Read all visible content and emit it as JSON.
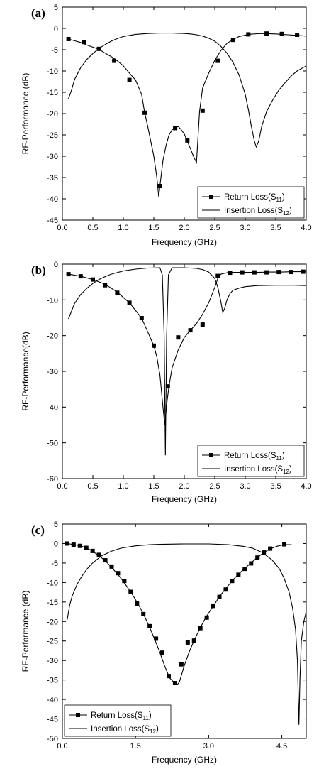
{
  "chart_data": [
    {
      "type": "line",
      "panel_label": "(a)",
      "xlabel": "Frequency (GHz)",
      "ylabel": "RF-Performance (dB)",
      "xlim": [
        0.0,
        4.0
      ],
      "ylim": [
        -45,
        5
      ],
      "xticks": [
        0.0,
        0.5,
        1.0,
        1.5,
        2.0,
        2.5,
        3.0,
        3.5,
        4.0
      ],
      "xtick_labels": [
        "0.0",
        "0.5",
        "1.0",
        "1.5",
        "2.0",
        "2.5",
        "3.0",
        "3.5",
        "4.0"
      ],
      "yticks": [
        5,
        0,
        -5,
        -10,
        -15,
        -20,
        -25,
        -30,
        -35,
        -40,
        -45
      ],
      "ytick_labels": [
        "5",
        "0",
        "-5",
        "-10",
        "-15",
        "-20",
        "-25",
        "-30",
        "-35",
        "-40",
        "-45"
      ],
      "legend_position": "bottom-right",
      "series": [
        {
          "name": "Return Loss(S11)",
          "label_main": "Return Loss(S",
          "label_sub": "11",
          "style": "line-square-markers",
          "x": [
            0.1,
            0.2,
            0.3,
            0.4,
            0.5,
            0.6,
            0.7,
            0.8,
            0.9,
            1.0,
            1.1,
            1.2,
            1.3,
            1.35,
            1.4,
            1.5,
            1.55,
            1.58,
            1.6,
            1.65,
            1.7,
            1.75,
            1.8,
            1.85,
            1.9,
            1.95,
            2.0,
            2.05,
            2.1,
            2.15,
            2.2,
            2.25,
            2.3,
            2.4,
            2.5,
            2.6,
            2.7,
            2.8,
            2.9,
            3.0,
            3.1,
            3.2,
            3.3,
            3.4,
            3.5,
            3.6,
            3.7,
            3.8,
            3.9,
            4.0
          ],
          "values": [
            -2.5,
            -2.9,
            -3.3,
            -3.9,
            -4.4,
            -4.9,
            -5.8,
            -6.6,
            -7.6,
            -8.8,
            -10.5,
            -12.1,
            -15.5,
            -19.8,
            -23.0,
            -30.0,
            -35.0,
            -39.5,
            -37.0,
            -31.0,
            -27.5,
            -25.0,
            -23.8,
            -23.4,
            -23.0,
            -23.8,
            -24.8,
            -26.5,
            -28.2,
            -30.0,
            -31.5,
            -19.5,
            -14.0,
            -10.5,
            -7.5,
            -5.2,
            -3.5,
            -2.6,
            -1.9,
            -1.6,
            -1.35,
            -1.25,
            -1.2,
            -1.25,
            -1.3,
            -1.4,
            -1.5,
            -1.6,
            -1.7,
            -1.8
          ],
          "marker_x": [
            0.1,
            0.35,
            0.6,
            0.85,
            1.1,
            1.35,
            1.6,
            1.85,
            2.05,
            2.3,
            2.55,
            2.8,
            3.05,
            3.35,
            3.6,
            3.85
          ],
          "marker_values": [
            -2.5,
            -3.2,
            -4.8,
            -7.6,
            -12.1,
            -19.8,
            -37.0,
            -23.4,
            -26.3,
            -19.3,
            -7.6,
            -2.7,
            -1.4,
            -1.2,
            -1.3,
            -1.5
          ]
        },
        {
          "name": "Insertion Loss(S12)",
          "label_main": "Insertion Loss(S",
          "label_sub": "12",
          "style": "line",
          "x": [
            0.1,
            0.15,
            0.2,
            0.3,
            0.4,
            0.5,
            0.6,
            0.7,
            0.8,
            0.9,
            1.0,
            1.2,
            1.4,
            1.6,
            1.8,
            2.0,
            2.1,
            2.2,
            2.3,
            2.4,
            2.5,
            2.6,
            2.7,
            2.8,
            2.9,
            3.0,
            3.05,
            3.1,
            3.15,
            3.18,
            3.22,
            3.27,
            3.35,
            3.45,
            3.55,
            3.65,
            3.75,
            3.85,
            4.0
          ],
          "values": [
            -16.5,
            -14.5,
            -12.0,
            -9.2,
            -7.3,
            -5.9,
            -4.7,
            -3.8,
            -3.0,
            -2.4,
            -1.9,
            -1.4,
            -1.2,
            -1.1,
            -1.1,
            -1.2,
            -1.3,
            -1.5,
            -1.8,
            -2.3,
            -3.0,
            -4.2,
            -5.8,
            -8.0,
            -11.0,
            -15.5,
            -19.0,
            -23.0,
            -26.5,
            -27.8,
            -26.5,
            -23.0,
            -19.5,
            -16.8,
            -14.5,
            -12.8,
            -11.2,
            -10.0,
            -8.8
          ]
        }
      ]
    },
    {
      "type": "line",
      "panel_label": "(b)",
      "xlabel": "Frequency (GHz)",
      "ylabel": "RF-Performance(dB)",
      "xlim": [
        0.0,
        4.0
      ],
      "ylim": [
        -60,
        0
      ],
      "xticks": [
        0.0,
        0.5,
        1.0,
        1.5,
        2.0,
        2.5,
        3.0,
        3.5,
        4.0
      ],
      "xtick_labels": [
        "0.0",
        "0.5",
        "1.0",
        "1.5",
        "2.0",
        "2.5",
        "3.0",
        "3.5",
        "4.0"
      ],
      "yticks": [
        0,
        -10,
        -20,
        -30,
        -40,
        -50,
        -60
      ],
      "ytick_labels": [
        "0",
        "-10",
        "-20",
        "-30",
        "-40",
        "-50",
        "-60"
      ],
      "legend_position": "bottom-right",
      "series": [
        {
          "name": "Return Loss(S11)",
          "label_main": "Return Loss(S",
          "label_sub": "11",
          "style": "line-square-markers",
          "x": [
            0.1,
            0.3,
            0.5,
            0.7,
            0.9,
            1.1,
            1.3,
            1.5,
            1.55,
            1.6,
            1.65,
            1.68,
            1.72,
            1.75,
            1.8,
            1.9,
            2.0,
            2.1,
            2.2,
            2.3,
            2.4,
            2.5,
            2.55,
            2.6,
            2.7,
            2.8,
            3.0,
            3.2,
            3.4,
            3.6,
            3.8,
            4.0
          ],
          "values": [
            -2.8,
            -3.4,
            -4.3,
            -5.6,
            -7.8,
            -10.8,
            -15.1,
            -22.8,
            -26.0,
            -31.0,
            -40.0,
            -45.0,
            -38.0,
            -34.0,
            -29.0,
            -24.0,
            -20.5,
            -18.5,
            -16.6,
            -14.0,
            -10.8,
            -6.5,
            -4.0,
            -2.8,
            -2.4,
            -2.3,
            -2.3,
            -2.3,
            -2.2,
            -2.2,
            -2.1,
            -2.1
          ],
          "marker_x": [
            0.1,
            0.3,
            0.5,
            0.7,
            0.9,
            1.1,
            1.3,
            1.5,
            1.73,
            1.9,
            2.1,
            2.3,
            2.55,
            2.75,
            2.95,
            3.15,
            3.35,
            3.55,
            3.75,
            3.95
          ],
          "marker_values": [
            -2.8,
            -3.4,
            -4.3,
            -5.9,
            -8.0,
            -10.8,
            -15.1,
            -22.8,
            -34.2,
            -20.5,
            -18.5,
            -16.9,
            -3.3,
            -2.4,
            -2.3,
            -2.3,
            -2.3,
            -2.2,
            -2.2,
            -2.1
          ]
        },
        {
          "name": "Insertion Loss(S12)",
          "label_main": "Insertion Loss(S",
          "label_sub": "12",
          "style": "line",
          "x": [
            0.1,
            0.2,
            0.3,
            0.4,
            0.5,
            0.6,
            0.7,
            0.8,
            1.0,
            1.2,
            1.4,
            1.6,
            1.64,
            1.67,
            1.69,
            1.71,
            1.74,
            1.8,
            2.0,
            2.2,
            2.3,
            2.4,
            2.5,
            2.55,
            2.6,
            2.63,
            2.66,
            2.7,
            2.75,
            2.8,
            2.9,
            3.0,
            3.2,
            3.5,
            3.8,
            4.0
          ],
          "values": [
            -15.3,
            -11.0,
            -8.5,
            -6.8,
            -5.4,
            -4.3,
            -3.5,
            -2.8,
            -1.9,
            -1.4,
            -1.1,
            -1.0,
            -3.0,
            -20.0,
            -53.5,
            -20.0,
            -3.0,
            -1.0,
            -1.0,
            -1.2,
            -1.5,
            -2.2,
            -4.0,
            -6.5,
            -10.5,
            -13.5,
            -12.5,
            -10.0,
            -8.2,
            -7.3,
            -6.7,
            -6.3,
            -6.0,
            -5.9,
            -5.9,
            -6.0
          ]
        }
      ]
    },
    {
      "type": "line",
      "panel_label": "(c)",
      "xlabel": "Frequency (GHz)",
      "ylabel": "RF-Performance (dB)",
      "xlim": [
        0.0,
        5.0
      ],
      "ylim": [
        -50,
        5
      ],
      "xticks": [
        0.0,
        1.5,
        3.0,
        4.5
      ],
      "xtick_labels": [
        "0.0",
        "1.5",
        "3.0",
        "4.5"
      ],
      "yticks": [
        5,
        0,
        -5,
        -10,
        -15,
        -20,
        -25,
        -30,
        -35,
        -40,
        -45,
        -50
      ],
      "ytick_labels": [
        "5",
        "0",
        "-5",
        "-10",
        "-15",
        "-20",
        "-25",
        "-30",
        "-35",
        "-40",
        "-45",
        "-50"
      ],
      "legend_position": "bottom-left",
      "series": [
        {
          "name": "Return Loss(S11)",
          "label_main": "Return Loss(S",
          "label_sub": "11",
          "style": "line-square-markers",
          "x": [
            0.1,
            0.2,
            0.3,
            0.4,
            0.5,
            0.6,
            0.7,
            0.8,
            0.9,
            1.0,
            1.1,
            1.2,
            1.3,
            1.4,
            1.5,
            1.6,
            1.7,
            1.8,
            1.9,
            2.0,
            2.1,
            2.2,
            2.3,
            2.35,
            2.4,
            2.5,
            2.6,
            2.7,
            2.8,
            2.9,
            3.0,
            3.1,
            3.2,
            3.3,
            3.4,
            3.5,
            3.6,
            3.7,
            3.8,
            3.9,
            4.0,
            4.1,
            4.2,
            4.3,
            4.4,
            4.5,
            4.6,
            4.7
          ],
          "values": [
            0.0,
            -0.2,
            -0.4,
            -0.7,
            -1.2,
            -1.8,
            -2.7,
            -3.6,
            -4.7,
            -6.0,
            -7.4,
            -8.9,
            -10.6,
            -12.4,
            -14.4,
            -16.6,
            -19.1,
            -21.8,
            -24.8,
            -28.0,
            -31.5,
            -34.5,
            -35.8,
            -36.3,
            -35.5,
            -31.3,
            -27.8,
            -24.9,
            -22.3,
            -19.9,
            -17.8,
            -15.9,
            -14.0,
            -12.3,
            -10.8,
            -9.3,
            -8.0,
            -6.8,
            -5.7,
            -4.6,
            -3.6,
            -2.6,
            -1.8,
            -1.2,
            -0.7,
            -0.4,
            -0.3,
            -0.3
          ],
          "marker_x": [
            0.1,
            0.23,
            0.36,
            0.49,
            0.62,
            0.75,
            0.88,
            1.01,
            1.14,
            1.27,
            1.4,
            1.53,
            1.66,
            1.79,
            1.92,
            2.05,
            2.18,
            2.31,
            2.44,
            2.57,
            2.7,
            2.83,
            2.96,
            3.09,
            3.22,
            3.35,
            3.48,
            3.61,
            3.74,
            3.87,
            4.0,
            4.13,
            4.26,
            4.55
          ],
          "marker_values": [
            0.0,
            -0.3,
            -0.6,
            -1.1,
            -1.9,
            -2.9,
            -4.3,
            -5.9,
            -7.6,
            -9.6,
            -12.4,
            -15.4,
            -18.1,
            -21.2,
            -24.4,
            -28.0,
            -34.0,
            -35.8,
            -31.0,
            -25.4,
            -24.9,
            -21.7,
            -19.0,
            -16.0,
            -13.7,
            -11.8,
            -9.6,
            -8.0,
            -6.5,
            -5.1,
            -3.6,
            -2.3,
            -1.3,
            -0.2
          ]
        },
        {
          "name": "Insertion Loss(S12)",
          "label_main": "Insertion Loss(S",
          "label_sub": "12",
          "style": "line",
          "x": [
            0.1,
            0.15,
            0.2,
            0.3,
            0.4,
            0.5,
            0.6,
            0.8,
            1.0,
            1.2,
            1.5,
            1.8,
            2.0,
            2.5,
            3.0,
            3.4,
            3.7,
            3.9,
            4.1,
            4.3,
            4.45,
            4.55,
            4.65,
            4.72,
            4.78,
            4.82,
            4.85,
            4.87,
            4.9,
            4.95,
            5.0
          ],
          "values": [
            -19.5,
            -15.8,
            -13.5,
            -10.5,
            -8.4,
            -6.6,
            -5.2,
            -3.2,
            -2.0,
            -1.2,
            -0.6,
            -0.3,
            -0.2,
            -0.1,
            -0.1,
            -0.3,
            -0.7,
            -1.2,
            -2.3,
            -4.2,
            -6.5,
            -9.0,
            -12.5,
            -16.5,
            -22.0,
            -30.0,
            -46.5,
            -35.0,
            -25.0,
            -20.0,
            -17.5
          ]
        }
      ]
    }
  ]
}
